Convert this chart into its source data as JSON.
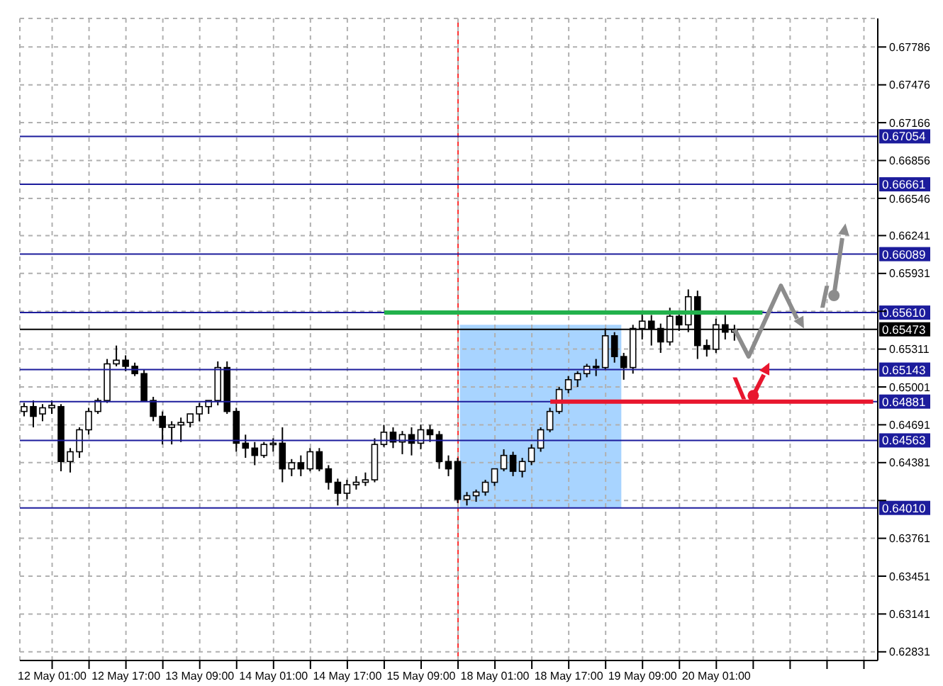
{
  "chart_data": {
    "type": "candlestick",
    "categories": [
      null,
      null,
      null,
      "12 May 01:00",
      null,
      null,
      null,
      null,
      null,
      null,
      null,
      "12 May 17:00",
      null,
      null,
      null,
      null,
      null,
      null,
      null,
      "13 May 09:00",
      null,
      null,
      null,
      null,
      null,
      null,
      null,
      "14 May 01:00",
      null,
      null,
      null,
      null,
      null,
      null,
      null,
      "14 May 17:00",
      null,
      null,
      null,
      null,
      null,
      null,
      null,
      "15 May 09:00",
      null,
      null,
      null,
      null,
      null,
      null,
      null,
      "18 May 01:00",
      null,
      null,
      null,
      null,
      null,
      null,
      null,
      "18 May 17:00",
      null,
      null,
      null,
      null,
      null,
      null,
      null,
      "19 May 09:00",
      null,
      null,
      null,
      null,
      null,
      null,
      null,
      "20 May 01:00",
      null,
      null,
      null,
      null,
      null,
      null,
      null,
      null,
      null,
      null,
      null,
      null,
      null,
      null,
      null,
      null,
      null
    ],
    "ohlc": [
      [
        0.648,
        0.6487,
        0.6476,
        0.6484
      ],
      [
        0.6484,
        0.6489,
        0.6467,
        0.6476
      ],
      [
        0.6478,
        0.6486,
        0.6472,
        0.6483
      ],
      [
        0.6483,
        0.6489,
        0.6478,
        0.6485
      ],
      [
        0.6484,
        0.6486,
        0.6431,
        0.6439
      ],
      [
        0.6439,
        0.645,
        0.643,
        0.6447
      ],
      [
        0.6447,
        0.6467,
        0.6442,
        0.6465
      ],
      [
        0.6465,
        0.6483,
        0.6461,
        0.648
      ],
      [
        0.648,
        0.6491,
        0.6478,
        0.6489
      ],
      [
        0.6489,
        0.6523,
        0.6487,
        0.6519
      ],
      [
        0.6519,
        0.6534,
        0.6517,
        0.6522
      ],
      [
        0.6522,
        0.6526,
        0.6513,
        0.6517
      ],
      [
        0.6517,
        0.652,
        0.6509,
        0.6511
      ],
      [
        0.6511,
        0.6514,
        0.6489,
        0.6489
      ],
      [
        0.6489,
        0.6492,
        0.6472,
        0.6476
      ],
      [
        0.6476,
        0.648,
        0.6453,
        0.6467
      ],
      [
        0.6467,
        0.6472,
        0.6453,
        0.6469
      ],
      [
        0.6469,
        0.6475,
        0.6455,
        0.6471
      ],
      [
        0.6471,
        0.6478,
        0.6467,
        0.6478
      ],
      [
        0.6478,
        0.6487,
        0.6472,
        0.6484
      ],
      [
        0.6484,
        0.6489,
        0.6478,
        0.6489
      ],
      [
        0.6489,
        0.6521,
        0.6485,
        0.6516
      ],
      [
        0.6516,
        0.6521,
        0.6478,
        0.648
      ],
      [
        0.648,
        0.6483,
        0.6447,
        0.6454
      ],
      [
        0.6454,
        0.6461,
        0.6442,
        0.645
      ],
      [
        0.645,
        0.6455,
        0.6436,
        0.6444
      ],
      [
        0.6444,
        0.6455,
        0.6442,
        0.6453
      ],
      [
        0.6453,
        0.6458,
        0.6447,
        0.6454
      ],
      [
        0.6454,
        0.6467,
        0.6422,
        0.6433
      ],
      [
        0.6433,
        0.6441,
        0.6427,
        0.6438
      ],
      [
        0.6438,
        0.6444,
        0.6427,
        0.6433
      ],
      [
        0.6433,
        0.645,
        0.6431,
        0.6447
      ],
      [
        0.6447,
        0.645,
        0.6431,
        0.6433
      ],
      [
        0.6433,
        0.6436,
        0.6416,
        0.6422
      ],
      [
        0.6422,
        0.6425,
        0.6403,
        0.6413
      ],
      [
        0.6413,
        0.6424,
        0.6408,
        0.642
      ],
      [
        0.642,
        0.6427,
        0.6416,
        0.6422
      ],
      [
        0.6422,
        0.643,
        0.6419,
        0.6424
      ],
      [
        0.6424,
        0.6458,
        0.6422,
        0.6453
      ],
      [
        0.6453,
        0.6469,
        0.6451,
        0.6463
      ],
      [
        0.6463,
        0.6467,
        0.645,
        0.6455
      ],
      [
        0.6455,
        0.6464,
        0.6445,
        0.6461
      ],
      [
        0.6461,
        0.6467,
        0.6444,
        0.6454
      ],
      [
        0.6454,
        0.6469,
        0.6449,
        0.6465
      ],
      [
        0.6465,
        0.6469,
        0.6455,
        0.6461
      ],
      [
        0.6461,
        0.6464,
        0.6433,
        0.6439
      ],
      [
        0.6439,
        0.6444,
        0.6427,
        0.6433
      ],
      [
        0.6439,
        0.6442,
        0.6405,
        0.6408
      ],
      [
        0.6408,
        0.6414,
        0.6403,
        0.6411
      ],
      [
        0.6411,
        0.6416,
        0.6406,
        0.6414
      ],
      [
        0.6414,
        0.6424,
        0.6411,
        0.6422
      ],
      [
        0.6422,
        0.6433,
        0.6419,
        0.6433
      ],
      [
        0.6433,
        0.6449,
        0.6431,
        0.6444
      ],
      [
        0.6444,
        0.6447,
        0.6427,
        0.6431
      ],
      [
        0.6431,
        0.6442,
        0.6426,
        0.6439
      ],
      [
        0.6439,
        0.6453,
        0.6436,
        0.645
      ],
      [
        0.645,
        0.6467,
        0.6447,
        0.6465
      ],
      [
        0.6465,
        0.6483,
        0.6463,
        0.648
      ],
      [
        0.648,
        0.65,
        0.6478,
        0.6498
      ],
      [
        0.6498,
        0.6509,
        0.6495,
        0.6506
      ],
      [
        0.6506,
        0.6513,
        0.65,
        0.6511
      ],
      [
        0.6511,
        0.6519,
        0.6508,
        0.6517
      ],
      [
        0.6517,
        0.6523,
        0.6509,
        0.6516
      ],
      [
        0.6516,
        0.6548,
        0.6514,
        0.6542
      ],
      [
        0.6542,
        0.6545,
        0.652,
        0.6525
      ],
      [
        0.6525,
        0.6528,
        0.6506,
        0.6516
      ],
      [
        0.6516,
        0.6551,
        0.6511,
        0.6548
      ],
      [
        0.6548,
        0.656,
        0.6539,
        0.6554
      ],
      [
        0.6554,
        0.6559,
        0.6534,
        0.6548
      ],
      [
        0.6548,
        0.6552,
        0.6528,
        0.6537
      ],
      [
        0.6537,
        0.6565,
        0.6534,
        0.6558
      ],
      [
        0.6558,
        0.6562,
        0.6546,
        0.6551
      ],
      [
        0.6551,
        0.658,
        0.6545,
        0.6574
      ],
      [
        0.6574,
        0.6579,
        0.6523,
        0.6534
      ],
      [
        0.6534,
        0.6539,
        0.6525,
        0.6531
      ],
      [
        0.6531,
        0.6556,
        0.6528,
        0.6551
      ],
      [
        0.6551,
        0.6559,
        0.6539,
        0.6545
      ],
      [
        0.6545,
        0.6551,
        0.6538,
        0.6547
      ],
      null,
      null,
      null,
      null,
      null,
      null,
      null,
      null,
      null,
      null,
      null,
      null,
      null,
      null,
      null
    ],
    "series": [
      {
        "type": "line",
        "color": "#22b14c",
        "values": [
          null,
          null,
          null,
          null,
          null,
          null,
          null,
          null,
          null,
          null,
          null,
          null,
          null,
          null,
          null,
          null,
          null,
          null,
          null,
          null,
          null,
          null,
          null,
          null,
          null,
          null,
          null,
          null,
          null,
          null,
          null,
          null,
          null,
          null,
          null,
          null,
          null,
          null,
          null,
          0.6561,
          0.6561,
          0.6561,
          0.6561,
          0.6561,
          0.6561,
          0.6561,
          0.6561,
          0.6561,
          0.6561,
          0.6561,
          0.6561,
          0.6561,
          0.6561,
          0.6561,
          0.6561,
          0.6561,
          0.6561,
          0.6561,
          0.6561,
          0.6561,
          0.6561,
          0.6561,
          0.6561,
          0.6561,
          0.6561,
          0.6561,
          0.6561,
          0.6561,
          0.6561,
          0.6561,
          0.6561,
          0.6561,
          0.6561,
          0.6561,
          0.6561,
          0.6561,
          0.6561,
          0.6561,
          0.6561,
          0.6561,
          0.6561,
          null,
          null,
          null,
          null,
          null,
          null,
          null,
          null,
          null,
          null,
          null,
          null
        ]
      },
      {
        "type": "line",
        "color": "#e8162e",
        "values": [
          null,
          null,
          null,
          null,
          null,
          null,
          null,
          null,
          null,
          null,
          null,
          null,
          null,
          null,
          null,
          null,
          null,
          null,
          null,
          null,
          null,
          null,
          null,
          null,
          null,
          null,
          null,
          null,
          null,
          null,
          null,
          null,
          null,
          null,
          null,
          null,
          null,
          null,
          null,
          null,
          null,
          null,
          null,
          null,
          null,
          null,
          null,
          null,
          null,
          null,
          null,
          null,
          null,
          null,
          null,
          null,
          null,
          0.6488,
          0.6488,
          0.6488,
          0.6488,
          0.6488,
          0.6488,
          0.6488,
          0.6488,
          0.6488,
          0.6488,
          0.6488,
          0.6488,
          0.6488,
          0.6488,
          0.6488,
          0.6488,
          0.6488,
          0.6488,
          0.6488,
          0.6488,
          0.6488,
          0.6488,
          0.6488,
          0.6488,
          0.6488,
          0.6488,
          0.6488,
          0.6488,
          0.6488,
          0.6488,
          0.6488,
          0.6488,
          0.6488,
          0.6488,
          0.6488,
          0.6488
        ]
      }
    ],
    "ylim": [
      0.6276,
      0.6802
    ],
    "yticks": [
      0.62831,
      0.63141,
      0.63451,
      0.63761,
      {
        "value": 0.64071,
        "label": null
      },
      0.64381,
      0.64691,
      0.65001,
      0.65311,
      {
        "value": 0.65621,
        "label": null
      },
      0.65931,
      0.66241,
      0.66546,
      0.66856,
      0.67166,
      0.67476,
      0.67786
    ],
    "grid": true,
    "ref_lines": [
      {
        "axis": "y",
        "value": 0.67054,
        "label": "0.67054",
        "color": "#1c1c9c"
      },
      {
        "axis": "y",
        "value": 0.66661,
        "label": "0.66661",
        "color": "#1c1c9c"
      },
      {
        "axis": "y",
        "value": 0.66089,
        "label": "0.66089",
        "color": "#1c1c9c"
      },
      {
        "axis": "y",
        "value": 0.6561,
        "label": "0.65610",
        "color": "#1c1c9c"
      },
      {
        "axis": "y",
        "value": 0.65473,
        "label": "0.65473",
        "color": "#000000"
      },
      {
        "axis": "y",
        "value": 0.65143,
        "label": "0.65143",
        "color": "#1c1c9c"
      },
      {
        "axis": "y",
        "value": 0.64881,
        "label": "0.64881",
        "color": "#1c1c9c"
      },
      {
        "axis": "y",
        "value": 0.64563,
        "label": "0.64563",
        "color": "#1c1c9c"
      },
      {
        "axis": "y",
        "value": 0.6401,
        "label": "0.64010",
        "color": "#1c1c9c"
      }
    ]
  }
}
